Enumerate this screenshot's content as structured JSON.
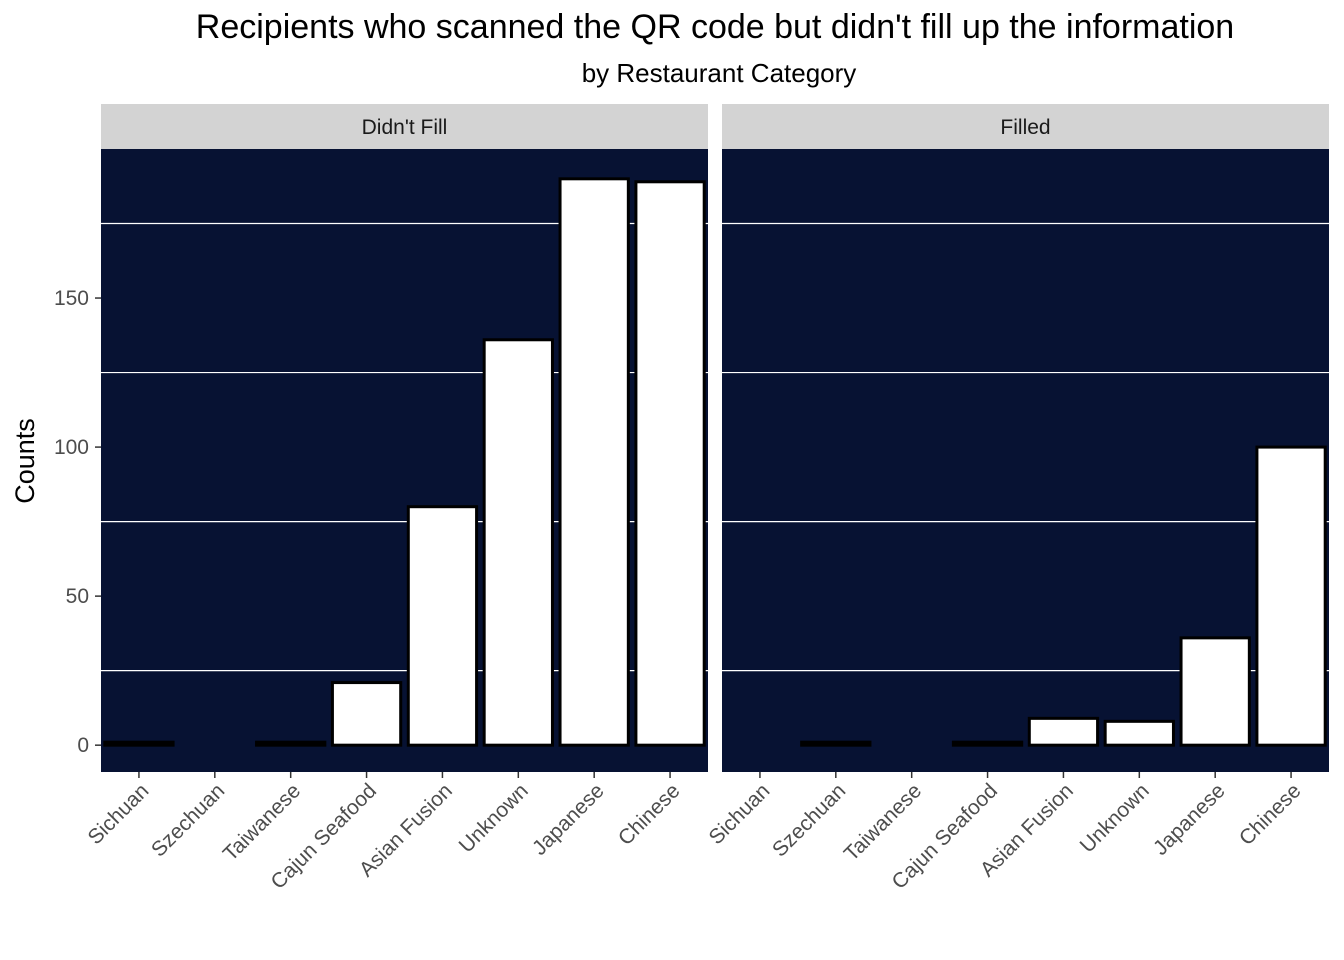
{
  "chart_data": {
    "type": "bar",
    "title": "Recipients who scanned the QR code but didn't fill up the information",
    "subtitle": "by Restaurant Category",
    "xlabel": "",
    "ylabel": "Counts",
    "categories": [
      "Sichuan",
      "Szechuan",
      "Taiwanese",
      "Cajun Seafood",
      "Asian Fusion",
      "Unknown",
      "Japanese",
      "Chinese"
    ],
    "yticks": [
      0,
      50,
      100,
      150
    ],
    "ylim": [
      -9,
      200
    ],
    "facets": [
      {
        "name": "Didn't Fill",
        "values": [
          1,
          null,
          1,
          21,
          80,
          136,
          190,
          189
        ]
      },
      {
        "name": "Filled",
        "values": [
          null,
          1,
          null,
          1,
          9,
          8,
          36,
          100
        ]
      }
    ],
    "colors": {
      "panel_background": "#071233",
      "bar_fill": "#ffffff",
      "bar_outline": "#000000",
      "strip_background": "#d3d3d3",
      "gridline": "#ffffff"
    },
    "grid": true,
    "legend": "none"
  }
}
